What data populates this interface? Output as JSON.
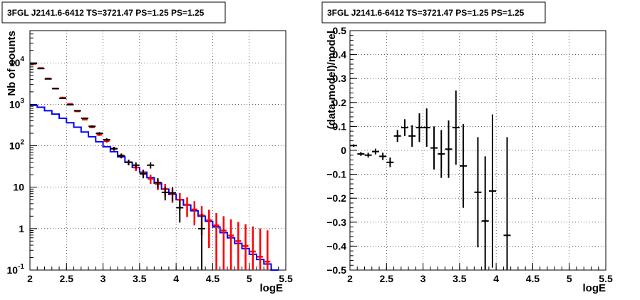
{
  "chart_data": [
    {
      "type": "histogram",
      "title": "3FGL J2141.6-6412 TS=3721.47 PS=1.25 PS=1.25",
      "xlabel": "logE",
      "ylabel": "Nb of counts",
      "xlim": [
        2,
        5.5
      ],
      "ylim": [
        0.1,
        60000
      ],
      "yscale": "log",
      "grid": true,
      "x_ticks": [
        "2",
        "2.5",
        "3",
        "3.5",
        "4",
        "4.5",
        "5",
        "5.5"
      ],
      "y_ticks": [
        {
          "value": 0.1,
          "label": "10",
          "exp": "-1"
        },
        {
          "value": 1,
          "label": "1",
          "exp": ""
        },
        {
          "value": 10,
          "label": "10",
          "exp": ""
        },
        {
          "value": 100,
          "label": "10",
          "exp": "2"
        },
        {
          "value": 1000,
          "label": "10",
          "exp": "3"
        },
        {
          "value": 10000,
          "label": "10",
          "exp": "4"
        }
      ],
      "bin_edges": [
        2,
        2.1,
        2.2,
        2.3,
        2.4,
        2.5,
        2.6,
        2.7,
        2.8,
        2.9,
        3,
        3.1,
        3.2,
        3.3,
        3.4,
        3.5,
        3.6,
        3.7,
        3.8,
        3.9,
        4,
        4.1,
        4.2,
        4.3,
        4.4,
        4.5,
        4.6,
        4.7,
        4.8,
        4.9,
        5,
        5.1,
        5.2,
        5.3,
        5.4,
        5.5
      ],
      "series": [
        {
          "role": "model",
          "color": "#0000ff",
          "values": [
            950,
            850,
            700,
            580,
            460,
            360,
            280,
            215,
            165,
            125,
            95,
            72,
            54,
            40,
            30,
            23,
            17,
            12.5,
            9,
            6.7,
            5,
            3.7,
            2.7,
            2,
            1.5,
            1.1,
            0.8,
            0.6,
            0.44,
            0.33,
            0.24,
            0.18,
            0.14,
            0.1
          ]
        },
        {
          "role": "counts-error",
          "color": "#ff0000",
          "x": [
            2.05,
            2.15,
            2.25,
            2.35,
            2.45,
            2.55,
            2.65,
            2.75,
            2.85,
            2.95,
            3.05,
            3.15,
            3.25,
            3.35,
            3.45,
            3.55,
            3.65,
            3.75,
            3.85,
            3.95,
            4.05,
            4.15,
            4.25,
            4.35,
            4.45,
            4.55,
            4.65,
            4.75,
            4.85,
            4.95,
            5.05,
            5.15,
            5.25
          ],
          "values": [
            9500,
            7500,
            4200,
            2400,
            1450,
            1020,
            680,
            430,
            280,
            185,
            130,
            85,
            58,
            40,
            30,
            22,
            16,
            12,
            9,
            6.8,
            5,
            3.8,
            2.9,
            2.1,
            1.6,
            1.2,
            0.9,
            0.68,
            0.5,
            0.38,
            0.28,
            0.21,
            0.16
          ],
          "err_low": [
            200,
            160,
            100,
            60,
            40,
            30,
            25,
            20,
            15,
            13,
            11,
            8,
            7,
            6,
            5.5,
            4.7,
            4,
            3.5,
            3,
            2.6,
            2.2,
            1.9,
            1.7,
            1.4,
            1.26,
            1.19,
            0.89,
            0.67,
            0.49,
            0.37,
            0.27,
            0.2,
            0.15
          ],
          "err_high": [
            200,
            160,
            100,
            60,
            40,
            30,
            25,
            20,
            15,
            13,
            11,
            8,
            7,
            6,
            5.5,
            4.7,
            4,
            3.5,
            3,
            2.6,
            2.2,
            1.9,
            1.7,
            1.4,
            1.26,
            1.19,
            1.1,
            1,
            0.95,
            0.9,
            0.85,
            0.8,
            0.75
          ]
        },
        {
          "role": "data",
          "color": "#000000",
          "x": [
            2.05,
            2.15,
            2.25,
            2.35,
            2.45,
            2.55,
            2.65,
            2.75,
            2.85,
            2.95,
            3.05,
            3.15,
            3.25,
            3.35,
            3.45,
            3.55,
            3.65,
            3.75,
            3.85,
            3.95,
            4.05,
            4.35
          ],
          "values": [
            9800,
            7300,
            4100,
            2400,
            1400,
            980,
            700,
            460,
            295,
            200,
            140,
            85,
            57,
            40,
            34,
            21,
            34,
            13,
            7.5,
            7.3,
            3.2,
            1
          ],
          "err_low": [
            100,
            85,
            64,
            49,
            37,
            31,
            26,
            21,
            17,
            14,
            12,
            9,
            7.5,
            6.3,
            5.8,
            4.6,
            5.8,
            3.6,
            2.7,
            2.7,
            1.8,
            0.95
          ],
          "err_high": [
            100,
            85,
            64,
            49,
            37,
            31,
            26,
            21,
            17,
            14,
            12,
            9,
            7.5,
            6.3,
            5.8,
            4.6,
            5.8,
            3.6,
            2.7,
            2.7,
            1.8,
            1.3
          ]
        }
      ]
    },
    {
      "type": "scatter",
      "title": "3FGL J2141.6-6412 TS=3721.47 PS=1.25 PS=1.25",
      "xlabel": "logE",
      "ylabel": "(data-model)/model",
      "xlim": [
        2,
        5.5
      ],
      "ylim": [
        -0.5,
        0.5
      ],
      "grid": true,
      "x_ticks": [
        "2",
        "2.5",
        "3",
        "3.5",
        "4",
        "4.5",
        "5",
        "5.5"
      ],
      "y_ticks": [
        "−0.5",
        "−0.4",
        "−0.3",
        "−0.2",
        "−0.1",
        "0",
        "0.1",
        "0.2",
        "0.3",
        "0.4",
        "0.5"
      ],
      "series": [
        {
          "role": "residuals",
          "color": "#000000",
          "x": [
            2.05,
            2.15,
            2.25,
            2.35,
            2.45,
            2.55,
            2.65,
            2.75,
            2.85,
            2.95,
            3.05,
            3.15,
            3.25,
            3.35,
            3.45,
            3.55,
            3.75,
            3.85,
            3.95,
            4.15
          ],
          "values": [
            0.02,
            -0.015,
            -0.02,
            -0.005,
            -0.025,
            -0.05,
            0.06,
            0.095,
            0.06,
            0.095,
            0.095,
            0.01,
            -0.015,
            0.005,
            0.095,
            -0.065,
            -0.175,
            -0.295,
            -0.17,
            -0.355
          ],
          "err": [
            0.005,
            0.008,
            0.01,
            0.012,
            0.015,
            0.02,
            0.025,
            0.035,
            0.045,
            0.06,
            0.08,
            0.09,
            0.1,
            0.12,
            0.155,
            0.175,
            0.23,
            0.27,
            0.32,
            0.41
          ]
        }
      ]
    }
  ]
}
